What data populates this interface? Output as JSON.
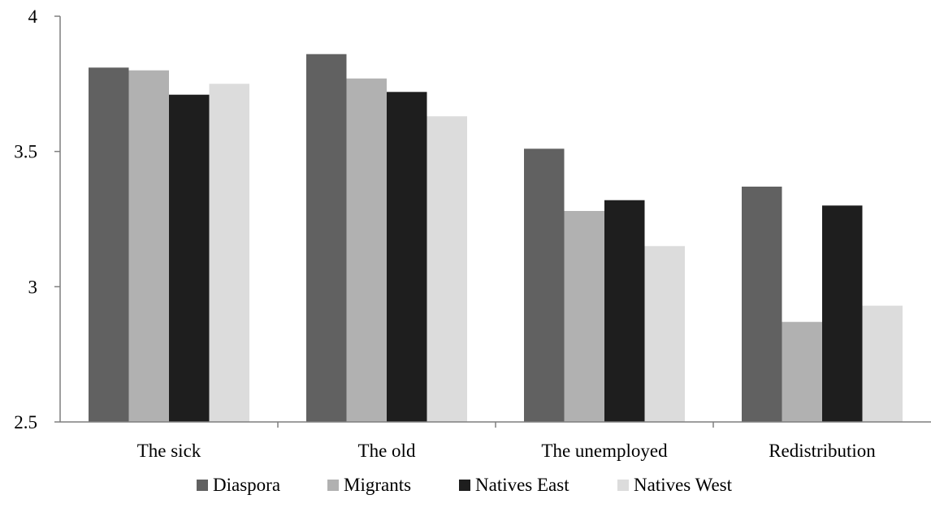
{
  "chart_data": {
    "type": "bar",
    "title": "",
    "xlabel": "",
    "ylabel": "",
    "ylim": [
      2.5,
      4
    ],
    "yticks": [
      "2.5",
      "3",
      "3.5",
      "4"
    ],
    "ytick_values": [
      2.5,
      3,
      3.5,
      4
    ],
    "categories": [
      "The sick",
      "The old",
      "The unemployed",
      "Redistribution"
    ],
    "series": [
      {
        "name": "Diaspora",
        "color": "#616161",
        "values": [
          3.81,
          3.86,
          3.51,
          3.37
        ]
      },
      {
        "name": "Migrants",
        "color": "#b1b1b1",
        "values": [
          3.8,
          3.77,
          3.28,
          2.87
        ]
      },
      {
        "name": "Natives East",
        "color": "#1e1e1e",
        "values": [
          3.71,
          3.72,
          3.32,
          3.3
        ]
      },
      {
        "name": "Natives West",
        "color": "#dcdcdc",
        "values": [
          3.75,
          3.63,
          3.15,
          2.93
        ]
      }
    ],
    "grid": false,
    "legend_position": "bottom"
  }
}
